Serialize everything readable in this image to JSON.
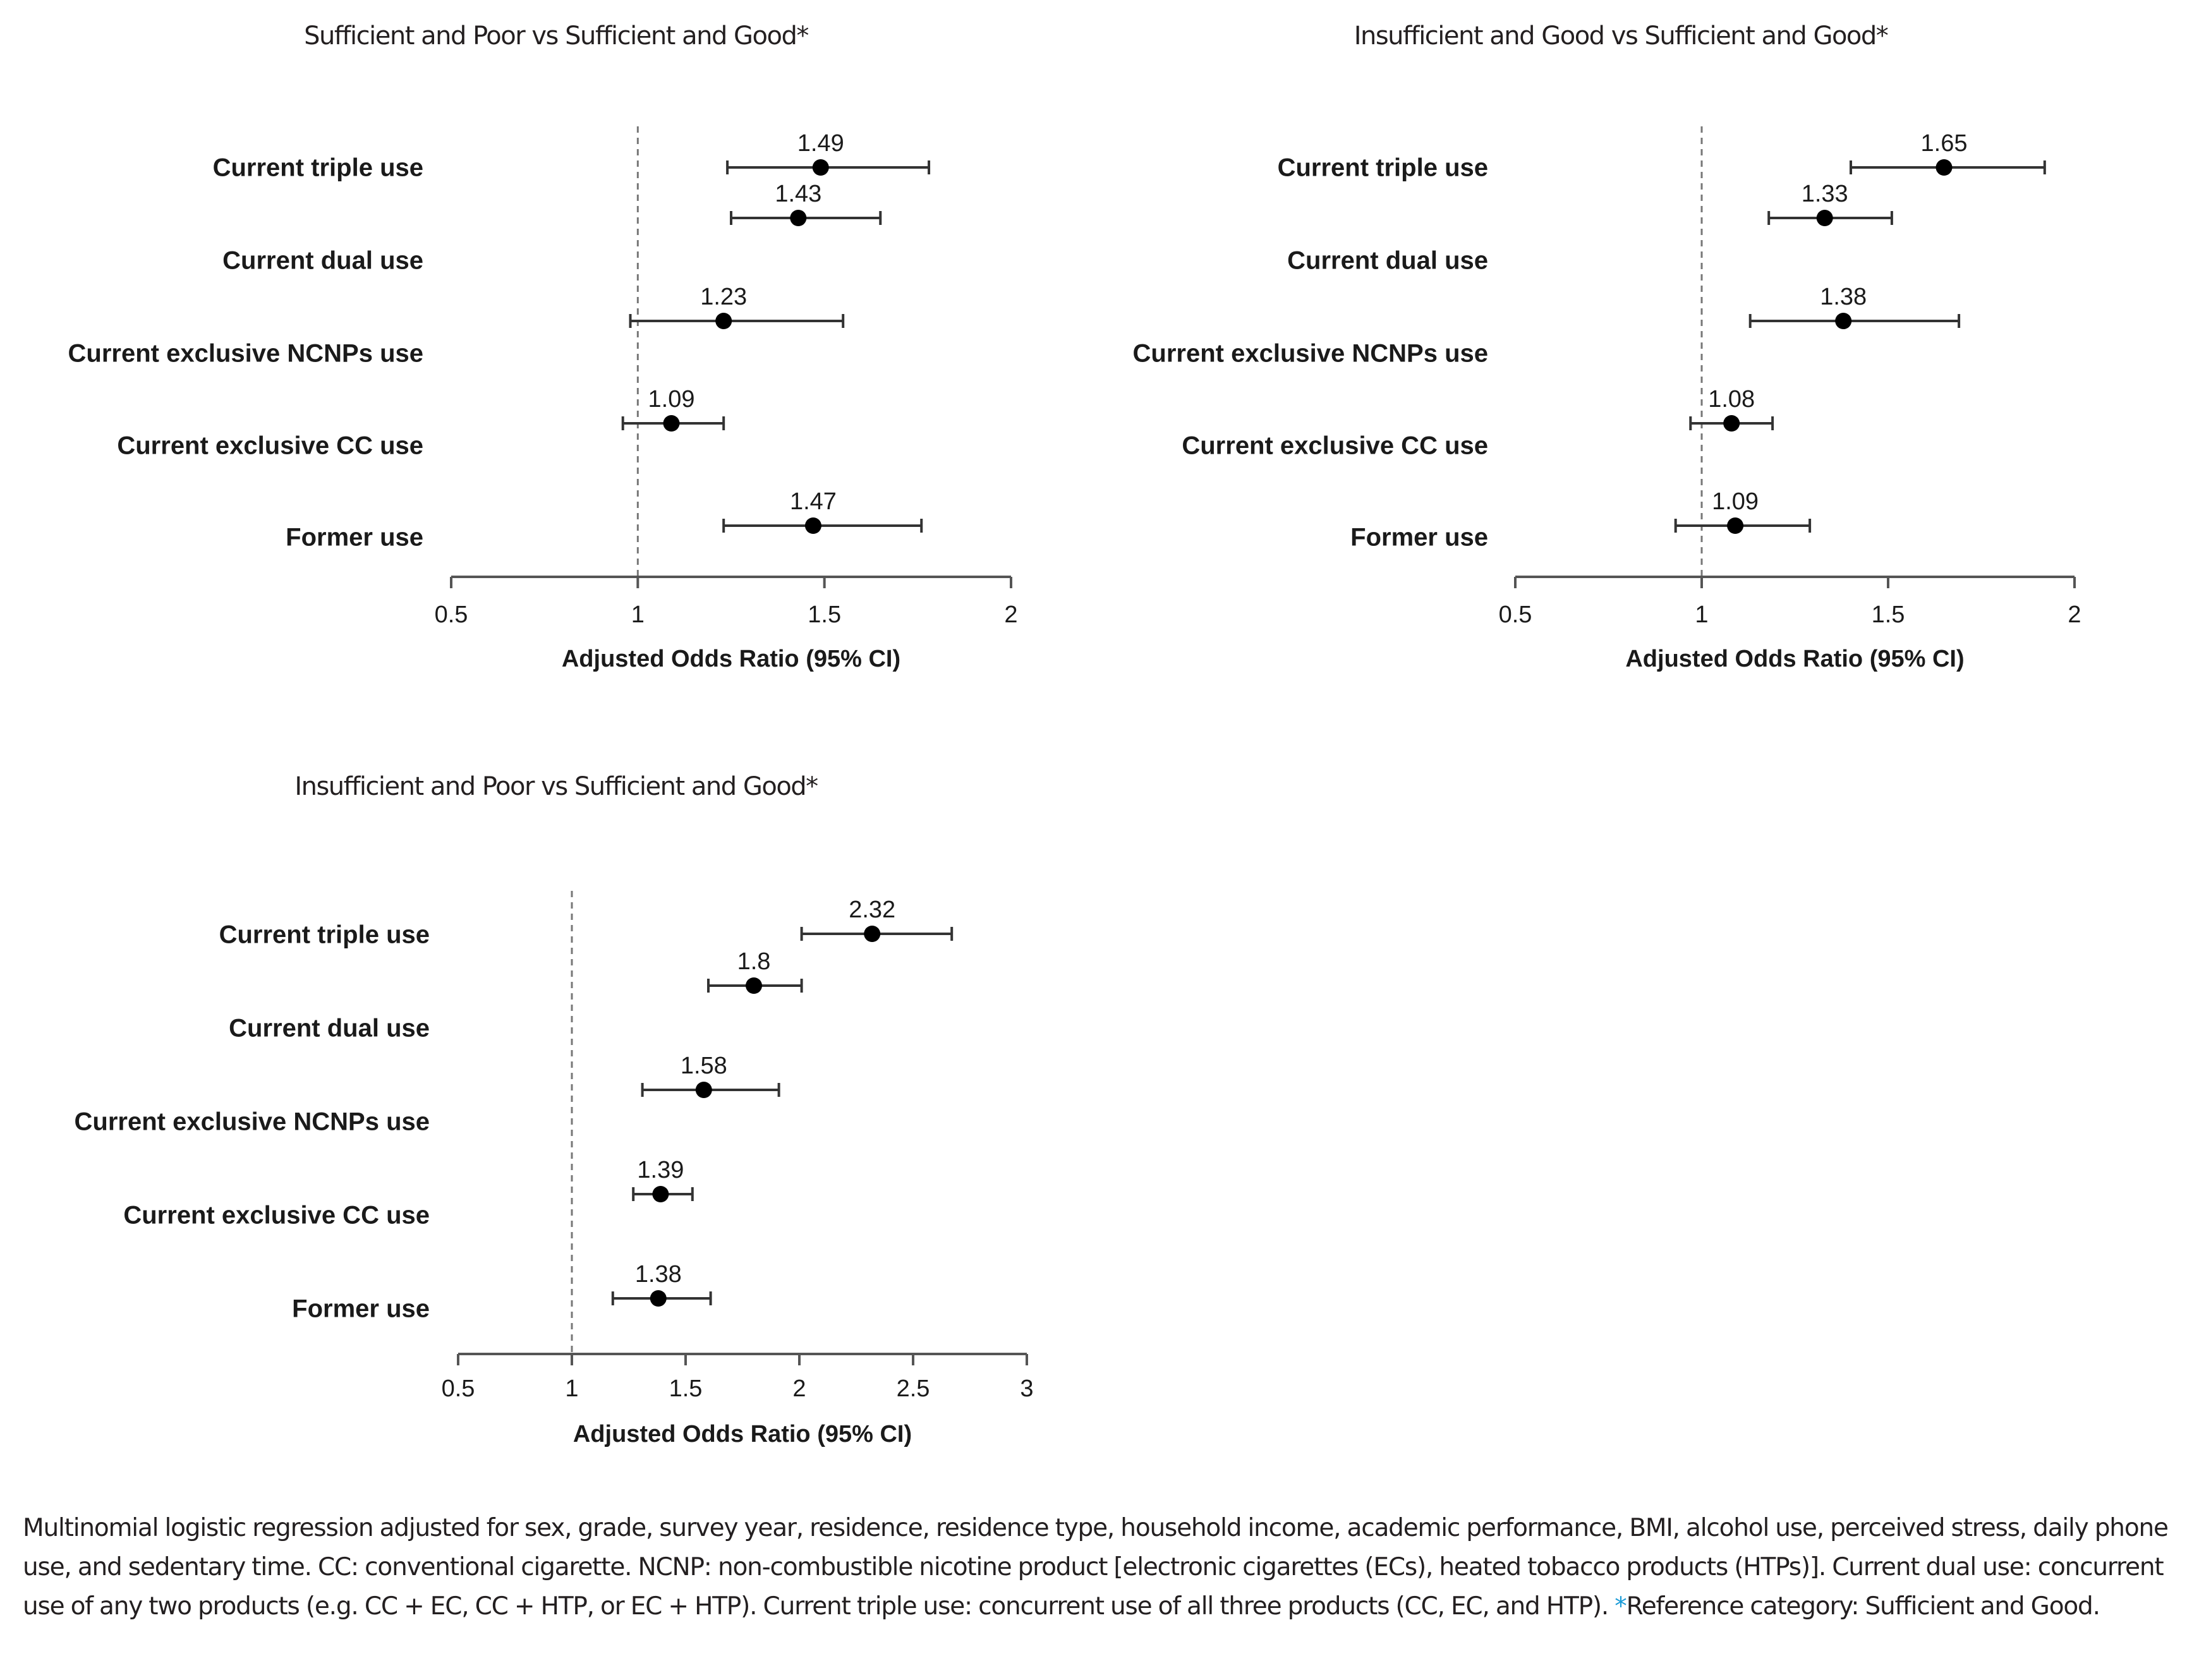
{
  "chart_data": [
    {
      "type": "forest",
      "title": "Sufficient and Poor vs Sufficient and Good*",
      "xlabel": "Adjusted Odds Ratio (95% CI)",
      "ylabel": "",
      "xlim": [
        0.5,
        2
      ],
      "xticks": [
        0.5,
        1,
        1.5,
        2
      ],
      "xtick_labels": [
        "0.5",
        "1",
        "1.5",
        "2"
      ],
      "reference_line": 1,
      "grid": false,
      "categories": [
        "Current triple use",
        "Current dual use",
        "Current exclusive NCNPs use",
        "Current exclusive CC use",
        "Former use"
      ],
      "series": [
        {
          "name": "AOR",
          "values": [
            1.49,
            1.43,
            1.23,
            1.09,
            1.47
          ],
          "labels": [
            "1.49",
            "1.43",
            "1.23",
            "1.09",
            "1.47"
          ],
          "ci_lower": [
            1.24,
            1.25,
            0.98,
            0.96,
            1.23
          ],
          "ci_upper": [
            1.78,
            1.65,
            1.55,
            1.23,
            1.76
          ]
        }
      ]
    },
    {
      "type": "forest",
      "title": "Insufficient and Good vs Sufficient and Good*",
      "xlabel": "Adjusted Odds Ratio (95% CI)",
      "ylabel": "",
      "xlim": [
        0.5,
        2
      ],
      "xticks": [
        0.5,
        1,
        1.5,
        2
      ],
      "xtick_labels": [
        "0.5",
        "1",
        "1.5",
        "2"
      ],
      "reference_line": 1,
      "grid": false,
      "categories": [
        "Current triple use",
        "Current dual use",
        "Current exclusive NCNPs use",
        "Current exclusive CC use",
        "Former use"
      ],
      "series": [
        {
          "name": "AOR",
          "values": [
            1.65,
            1.33,
            1.38,
            1.08,
            1.09
          ],
          "labels": [
            "1.65",
            "1.33",
            "1.38",
            "1.08",
            "1.09"
          ],
          "ci_lower": [
            1.4,
            1.18,
            1.13,
            0.97,
            0.93
          ],
          "ci_upper": [
            1.92,
            1.51,
            1.69,
            1.19,
            1.29
          ]
        }
      ]
    },
    {
      "type": "forest",
      "title": "Insufficient and Poor vs Sufficient and Good*",
      "xlabel": "Adjusted Odds Ratio (95% CI)",
      "ylabel": "",
      "xlim": [
        0.5,
        3
      ],
      "xticks": [
        0.5,
        1,
        1.5,
        2,
        2.5,
        3
      ],
      "xtick_labels": [
        "0.5",
        "1",
        "1.5",
        "2",
        "2.5",
        "3"
      ],
      "reference_line": 1,
      "grid": false,
      "categories": [
        "Current triple use",
        "Current dual use",
        "Current exclusive NCNPs use",
        "Current exclusive CC use",
        "Former use"
      ],
      "series": [
        {
          "name": "AOR",
          "values": [
            2.32,
            1.8,
            1.58,
            1.39,
            1.38
          ],
          "labels": [
            "2.32",
            "1.8",
            "1.58",
            "1.39",
            "1.38"
          ],
          "ci_lower": [
            2.01,
            1.6,
            1.31,
            1.27,
            1.18
          ],
          "ci_upper": [
            2.67,
            2.01,
            1.91,
            1.53,
            1.61
          ]
        }
      ]
    }
  ],
  "caption": {
    "text": "Multinomial logistic regression adjusted for sex, grade, survey year, residence, residence type, household income, academic performance, BMI, alcohol use, perceived stress, daily phone use, and sedentary time. CC: conventional cigarette. NCNP: non-combustible nicotine product [electronic cigarettes (ECs), heated tobacco products (HTPs)]. Current dual use: concurrent use of any two products (e.g. CC + EC, CC + HTP, or EC + HTP). Current triple use: concurrent use of all three products (CC, EC, and HTP).",
    "reference_marker": "*",
    "reference_note": "Reference category: Sufficient and Good."
  },
  "colors": {
    "marker": "#000000",
    "whisker": "#333333",
    "axis": "#555555",
    "reference_line": "#777777",
    "reference_marker": "#1a9bd7"
  }
}
